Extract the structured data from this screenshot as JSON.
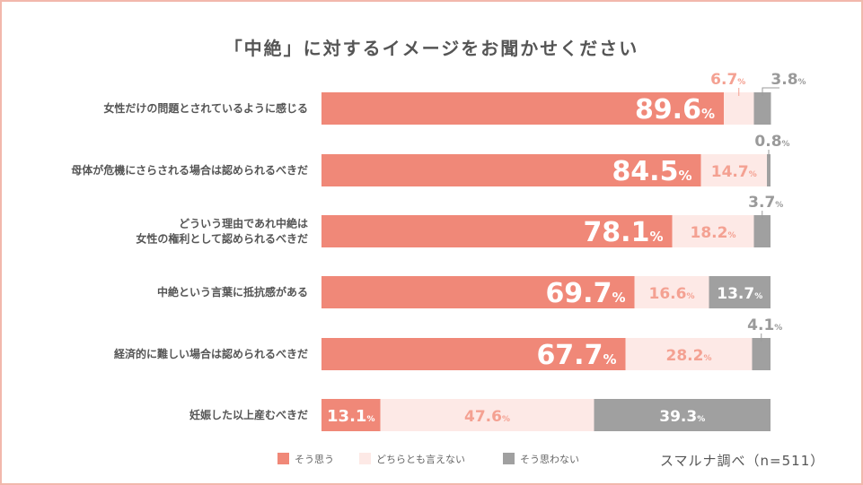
{
  "chart_data": {
    "type": "bar",
    "stacked": true,
    "orientation": "horizontal",
    "title": "「中絶」に対するイメージをお聞かせください",
    "unit": "%",
    "categories": [
      "女性だけの問題とされているように感じる",
      "母体が危機にさらされる場合は認められるべきだ",
      "どういう理由であれ中絶は\n女性の権利として認められるべきだ",
      "中絶という言葉に抵抗感がある",
      "経済的に難しい場合は認められるべきだ",
      "妊娠した以上産むべきだ"
    ],
    "series": [
      {
        "name": "そう思う",
        "values": [
          89.6,
          84.5,
          78.1,
          69.7,
          67.7,
          13.1
        ]
      },
      {
        "name": "どちらとも言えない",
        "values": [
          6.7,
          14.7,
          18.2,
          16.6,
          28.2,
          47.6
        ]
      },
      {
        "name": "そう思わない",
        "values": [
          3.8,
          0.8,
          3.7,
          13.7,
          4.1,
          39.3
        ]
      }
    ],
    "series_colors": [
      "#f08878",
      "#fde9e6",
      "#a0a0a0"
    ],
    "xlim": [
      0,
      100
    ],
    "legend_position": "bottom",
    "grid": false
  },
  "source": "スマルナ調べ（n=511）"
}
